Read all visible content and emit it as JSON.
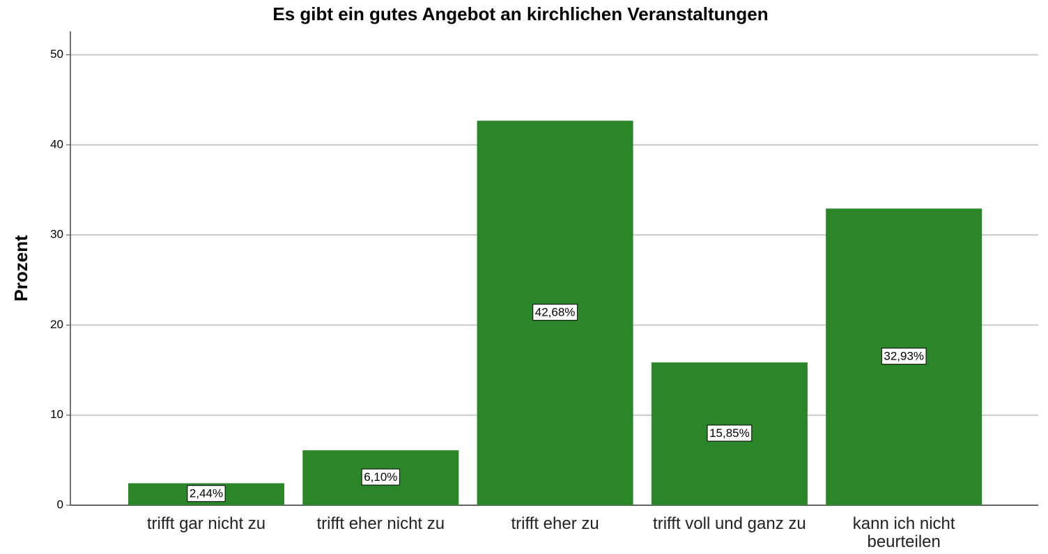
{
  "chart_data": {
    "type": "bar",
    "title": "Es gibt ein gutes Angebot an kirchlichen Veranstaltungen",
    "y_label": "Prozent",
    "categories": [
      "trifft gar nicht zu",
      "trifft eher nicht zu",
      "trifft eher zu",
      "trifft voll und ganz zu",
      "kann ich nicht beurteilen"
    ],
    "values": [
      2.44,
      6.1,
      42.68,
      15.85,
      32.93
    ],
    "value_labels": [
      "2,44%",
      "6,10%",
      "42,68%",
      "15,85%",
      "32,93%"
    ],
    "color": "#2a8629",
    "ylim": [
      0,
      52.6
    ],
    "yticks": [
      0,
      10,
      20,
      30,
      40,
      50
    ],
    "grid": true
  }
}
